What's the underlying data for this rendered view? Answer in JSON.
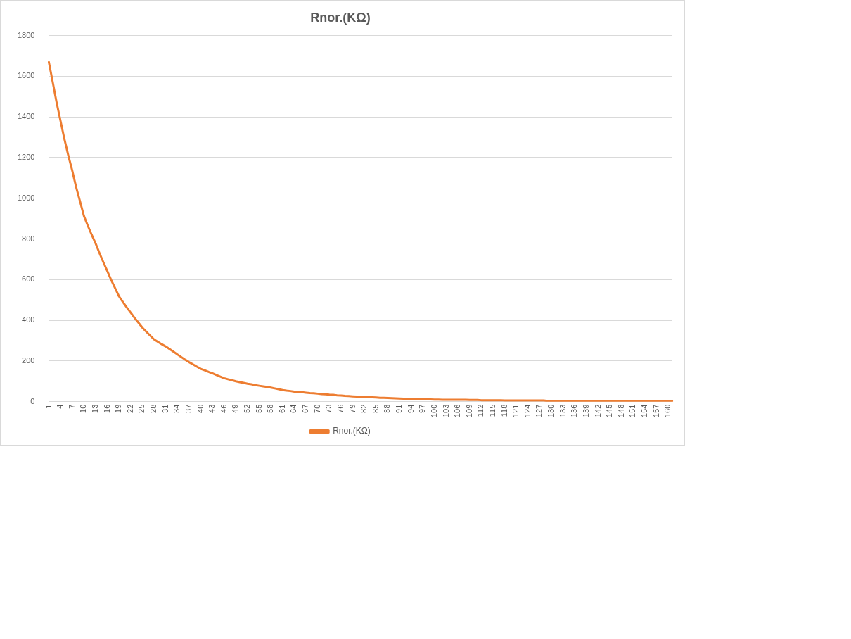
{
  "chart_data": {
    "type": "line",
    "title": "Rnor.(KΩ)",
    "categories": [
      "1",
      null,
      null,
      "4",
      null,
      null,
      "7",
      null,
      null,
      "10",
      null,
      null,
      "13",
      null,
      null,
      "16",
      null,
      null,
      "19",
      null,
      null,
      "22",
      null,
      null,
      "25",
      null,
      null,
      "28",
      null,
      null,
      "31",
      null,
      null,
      "34",
      null,
      null,
      "37",
      null,
      null,
      "40",
      null,
      null,
      "43",
      null,
      null,
      "46",
      null,
      null,
      "49",
      null,
      null,
      "52",
      null,
      null,
      "55",
      null,
      null,
      "58",
      null,
      null,
      "61",
      null,
      null,
      "64",
      null,
      null,
      "67",
      null,
      null,
      "70",
      null,
      null,
      "73",
      null,
      null,
      "76",
      null,
      null,
      "79",
      null,
      null,
      "82",
      null,
      null,
      "85",
      null,
      null,
      "88",
      null,
      null,
      "91",
      null,
      null,
      "94",
      null,
      null,
      "97",
      null,
      null,
      "100",
      null,
      null,
      "103",
      null,
      null,
      "106",
      null,
      null,
      "109",
      null,
      null,
      "112",
      null,
      null,
      "115",
      null,
      null,
      "118",
      null,
      null,
      "121",
      null,
      null,
      "124",
      null,
      null,
      "127",
      null,
      null,
      "130",
      null,
      null,
      "133",
      null,
      null,
      "136",
      null,
      null,
      "139",
      null,
      null,
      "142",
      null,
      null,
      "145",
      null,
      null,
      "148",
      null,
      null,
      "151",
      null,
      null,
      "154",
      null,
      null,
      "157",
      null,
      null,
      "160",
      null
    ],
    "series": [
      {
        "name": "Rnor.(KΩ)",
        "color": "#ed7d31",
        "values": [
          1670,
          1570,
          1470,
          1380,
          1290,
          1210,
          1136,
          1055,
          985,
          913,
          865,
          820,
          778,
          730,
          685,
          642,
          598,
          558,
          518,
          490,
          463,
          438,
          412,
          388,
          364,
          344,
          325,
          306,
          294,
          282,
          271,
          258,
          245,
          232,
          219,
          206,
          194,
          183,
          172,
          161,
          154,
          146,
          139,
          131,
          123,
          115,
          110,
          105,
          100,
          96,
          92,
          88,
          85,
          81,
          78,
          75,
          72,
          69,
          65,
          61,
          57,
          54,
          52,
          49,
          47,
          46,
          44,
          42,
          41,
          39,
          37,
          36,
          34,
          33,
          31,
          30,
          28,
          27,
          26,
          25,
          24,
          23,
          22,
          21,
          20,
          19,
          19,
          18,
          17,
          16,
          15,
          14,
          14,
          13,
          13,
          12,
          12,
          11,
          11,
          10,
          10,
          9,
          9,
          9,
          9,
          9,
          9,
          9,
          8,
          8,
          8,
          7,
          7,
          7,
          7,
          7,
          7,
          6,
          6,
          6,
          6,
          6,
          6,
          6,
          6,
          6,
          6,
          6,
          3,
          3,
          3,
          3,
          3,
          3,
          3,
          3,
          3,
          3,
          3,
          3,
          3,
          3,
          3,
          3,
          3,
          3,
          3,
          3,
          3,
          3,
          3,
          3,
          3,
          3,
          3,
          3,
          3,
          3,
          3,
          3,
          3
        ]
      }
    ],
    "ylim": [
      0,
      1800
    ],
    "yticks": [
      0,
      200,
      400,
      600,
      800,
      1000,
      1200,
      1400,
      1600,
      1800
    ],
    "grid": "y",
    "legend": "bottom",
    "marker": "none",
    "line_style": "solid"
  }
}
